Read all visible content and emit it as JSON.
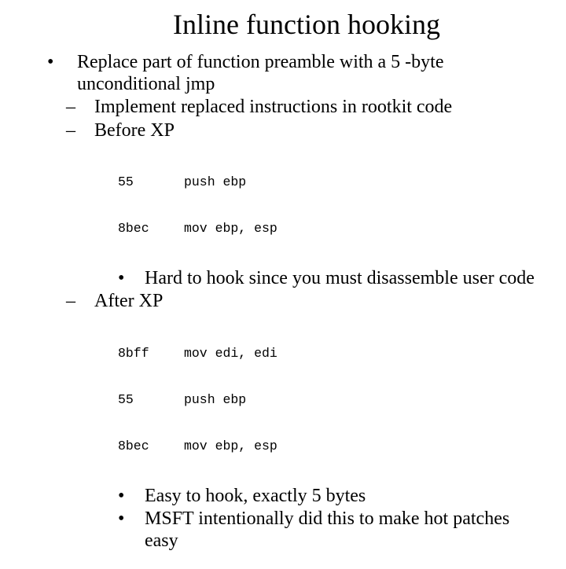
{
  "title": "Inline function hooking",
  "bullets": {
    "l1_1": "Replace part of function preamble with a 5 -byte unconditional jmp",
    "l2_1": "Implement replaced instructions in rootkit code",
    "l2_2": "Before XP",
    "l3_1": "Hard to hook since you must disassemble user code",
    "l2_3": "After XP",
    "l3_2": "Easy to hook, exactly 5 bytes",
    "l3_3": "MSFT intentionally did this to make hot patches easy"
  },
  "code_before": [
    {
      "hex": "55",
      "asm": "push ebp"
    },
    {
      "hex": "8bec",
      "asm": "mov ebp, esp"
    }
  ],
  "code_after": [
    {
      "hex": "8bff",
      "asm": "mov edi, edi"
    },
    {
      "hex": "55",
      "asm": "push ebp"
    },
    {
      "hex": "8bec",
      "asm": "mov ebp, esp"
    }
  ],
  "markers": {
    "bullet": "•",
    "dash": "–",
    "dot": "•"
  },
  "style": {
    "title_fontsize": 36,
    "body_fontsize": 24,
    "code_fontsize": 16.5,
    "text_color": "#000000",
    "bg_color": "#ffffff",
    "body_font": "Times New Roman",
    "code_font": "Courier New"
  }
}
